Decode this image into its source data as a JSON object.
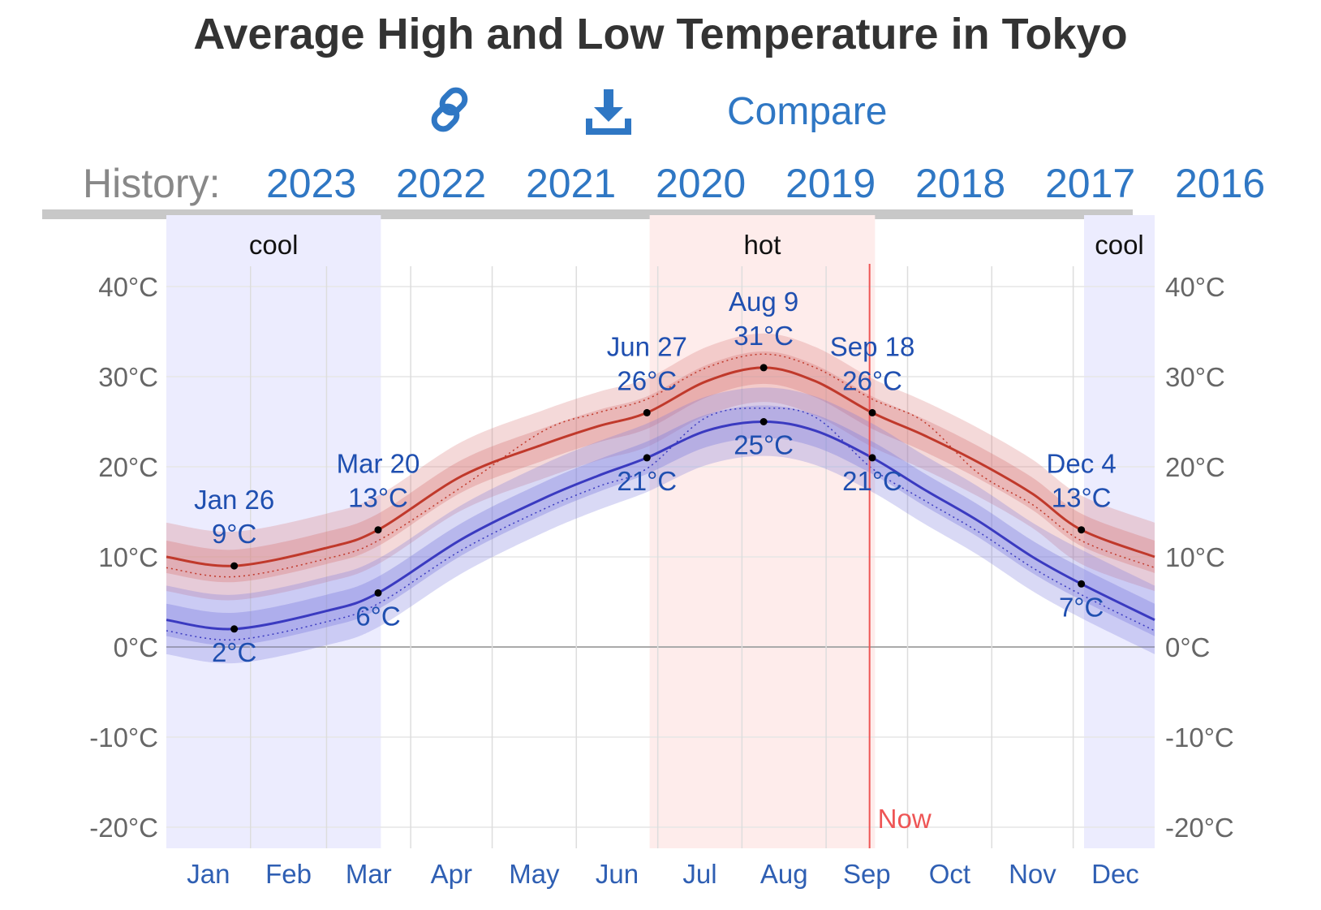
{
  "title": "Average High and Low Temperature in Tokyo",
  "toolbar": {
    "link_icon": "link-icon",
    "download_icon": "download-icon",
    "compare_label": "Compare"
  },
  "history": {
    "label": "History:",
    "years": [
      "2023",
      "2022",
      "2021",
      "2020",
      "2019",
      "2018",
      "2017",
      "2016"
    ]
  },
  "colors": {
    "high": "#c0392b",
    "low": "#3a3ac0",
    "cool_band": "#ececfe",
    "hot_band": "#feeceb",
    "now_line": "#ee5555",
    "link": "#2f77c4"
  },
  "chart_data": {
    "type": "line",
    "title": "Average High and Low Temperature in Tokyo",
    "xlabel": "",
    "ylabel": "",
    "ylim": [
      -20,
      40
    ],
    "y_ticks": [
      40,
      30,
      20,
      10,
      0,
      -10,
      -20
    ],
    "y_tick_labels": [
      "40°C",
      "30°C",
      "20°C",
      "10°C",
      "0°C",
      "-10°C",
      "-20°C"
    ],
    "months": [
      "Jan",
      "Feb",
      "Mar",
      "Apr",
      "May",
      "Jun",
      "Jul",
      "Aug",
      "Sep",
      "Oct",
      "Nov",
      "Dec"
    ],
    "x_unit": "day of year",
    "grid": true,
    "series": [
      {
        "key": "high",
        "days": [
          1,
          26,
          60,
          79,
          110,
          140,
          160,
          178,
          200,
          221,
          240,
          261,
          280,
          300,
          320,
          338,
          365
        ],
        "values": [
          10,
          9,
          11,
          13,
          19,
          22.5,
          24.5,
          26,
          29.5,
          31,
          29.5,
          26,
          23.5,
          20.5,
          17,
          13,
          10
        ]
      },
      {
        "key": "low",
        "days": [
          1,
          26,
          60,
          79,
          110,
          140,
          160,
          178,
          200,
          221,
          240,
          261,
          280,
          300,
          320,
          338,
          365
        ],
        "values": [
          3,
          2,
          4,
          6,
          12,
          16.5,
          19,
          21,
          24,
          25,
          24,
          21,
          17.5,
          14,
          10,
          7,
          3
        ]
      }
    ],
    "seasons": [
      {
        "label": "cool",
        "start_day": 1,
        "end_day": 80
      },
      {
        "label": "hot",
        "start_day": 179,
        "end_day": 262
      },
      {
        "label": "cool",
        "start_day": 339,
        "end_day": 365
      }
    ],
    "annotations": [
      {
        "date": "Jan 26",
        "day": 26,
        "high": "9°C",
        "low": "2°C"
      },
      {
        "date": "Mar 20",
        "day": 79,
        "high": "13°C",
        "low": "6°C"
      },
      {
        "date": "Jun 27",
        "day": 178,
        "high": "26°C",
        "low": "21°C"
      },
      {
        "date": "Aug 9",
        "day": 221,
        "high": "31°C",
        "low": "25°C"
      },
      {
        "date": "Sep 18",
        "day": 261,
        "high": "26°C",
        "low": "21°C"
      },
      {
        "date": "Dec 4",
        "day": 338,
        "high": "13°C",
        "low": "7°C"
      }
    ],
    "now": {
      "label": "Now",
      "day": 260
    }
  }
}
